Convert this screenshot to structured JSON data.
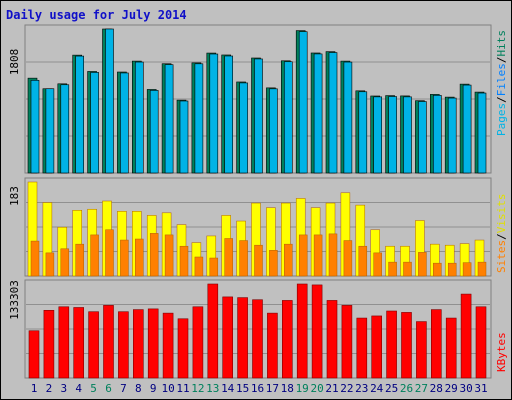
{
  "title": "Daily usage for July 2014",
  "colors": {
    "pages": "#00b3e6",
    "files": "#0080ff",
    "hits": "#00805c",
    "visits": "#ffff00",
    "sites": "#ff8000",
    "kbytes": "#ff0000",
    "weekend": "#00805c",
    "weekday": "#000080"
  },
  "panels": {
    "top": {
      "max_label": "1808",
      "legend": [
        "Pages",
        "/",
        "Files",
        "/",
        "Hits"
      ]
    },
    "mid": {
      "max_label": "183",
      "legend": [
        "Sites",
        "/",
        "Visits"
      ]
    },
    "bot": {
      "max_label": "133303",
      "legend": [
        "KBytes"
      ]
    }
  },
  "chart_data": {
    "type": "bar",
    "title": "Daily usage for July 2014",
    "categories": [
      "1",
      "2",
      "3",
      "4",
      "5",
      "6",
      "7",
      "8",
      "9",
      "10",
      "11",
      "12",
      "13",
      "14",
      "15",
      "16",
      "17",
      "18",
      "19",
      "20",
      "21",
      "22",
      "23",
      "24",
      "25",
      "26",
      "27",
      "28",
      "29",
      "30",
      "31"
    ],
    "weekend_days": [
      "5",
      "6",
      "12",
      "13",
      "19",
      "20",
      "26",
      "27"
    ],
    "series": [
      {
        "name": "Hits",
        "panel": "top",
        "values": [
          1191,
          1058,
          1120,
          1480,
          1275,
          1808,
          1268,
          1405,
          1049,
          1372,
          915,
          1383,
          1506,
          1482,
          1143,
          1444,
          1069,
          1409,
          1788,
          1507,
          1524,
          1405,
          1032,
          967,
          972,
          968,
          908,
          987,
          953,
          1116,
          1016
        ]
      },
      {
        "name": "Files",
        "panel": "top",
        "values": [
          1164,
          1058,
          1108,
          1468,
          1263,
          1808,
          1256,
          1393,
          1037,
          1360,
          904,
          1371,
          1494,
          1469,
          1131,
          1432,
          1057,
          1397,
          1774,
          1495,
          1512,
          1393,
          1020,
          956,
          960,
          956,
          897,
          975,
          941,
          1104,
          1004
        ]
      },
      {
        "name": "Visits",
        "panel": "mid",
        "values": [
          183,
          143,
          95,
          128,
          130,
          146,
          126,
          126,
          118,
          123,
          100,
          65,
          78,
          118,
          107,
          142,
          133,
          142,
          151,
          133,
          142,
          162,
          138,
          90,
          58,
          58,
          108,
          62,
          60,
          63,
          70
        ]
      },
      {
        "name": "Sites",
        "panel": "mid",
        "values": [
          68,
          45,
          53,
          62,
          80,
          90,
          70,
          72,
          83,
          80,
          58,
          37,
          35,
          73,
          69,
          60,
          50,
          62,
          80,
          80,
          82,
          69,
          58,
          45,
          27,
          27,
          46,
          25,
          25,
          26,
          27
        ]
      },
      {
        "name": "KBytes",
        "panel": "bot",
        "values": [
          67000,
          96000,
          101000,
          100000,
          94000,
          103000,
          94000,
          97000,
          98000,
          92000,
          84000,
          101000,
          133303,
          115000,
          114000,
          111000,
          92000,
          110000,
          133303,
          132000,
          110000,
          103000,
          85000,
          88000,
          95000,
          93000,
          80000,
          97000,
          85000,
          119000,
          101000
        ]
      }
    ],
    "ylim": {
      "top": [
        0,
        1808
      ],
      "mid": [
        0,
        183
      ],
      "bot": [
        0,
        133303
      ]
    }
  }
}
